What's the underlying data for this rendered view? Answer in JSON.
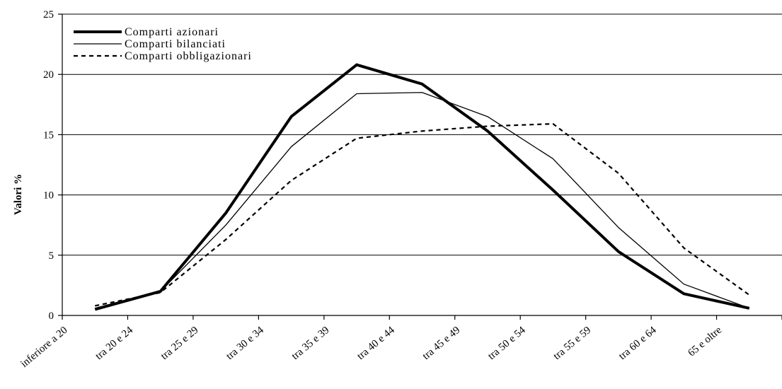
{
  "chart_data": {
    "type": "line",
    "title": "",
    "xlabel": "",
    "ylabel": "Valori %",
    "ylim": [
      0,
      25
    ],
    "yticks": [
      0,
      5,
      10,
      15,
      20,
      25
    ],
    "grid": true,
    "legend_position": "top-left",
    "categories": [
      "inferiore a 20",
      "tra 20 e 24",
      "tra 25 e 29",
      "tra 30 e 34",
      "tra 35 e 39",
      "tra 40 e 44",
      "tra 45 e 49",
      "tra 50 e 54",
      "tra 55 e 59",
      "tra 60 e 64",
      "65 e oltre"
    ],
    "series": [
      {
        "name": "Comparti azionari",
        "style": "thick",
        "values": [
          0.5,
          2.0,
          8.5,
          16.5,
          20.8,
          19.2,
          15.3,
          10.4,
          5.3,
          1.8,
          0.6
        ]
      },
      {
        "name": "Comparti bilanciati",
        "style": "thin",
        "values": [
          0.6,
          2.0,
          7.5,
          14.0,
          18.4,
          18.5,
          16.5,
          13.0,
          7.3,
          2.6,
          0.6
        ]
      },
      {
        "name": "Comparti obbligazionari",
        "style": "dashed",
        "values": [
          0.8,
          1.9,
          6.3,
          11.2,
          14.7,
          15.3,
          15.7,
          15.9,
          11.8,
          5.6,
          1.7
        ]
      }
    ]
  }
}
